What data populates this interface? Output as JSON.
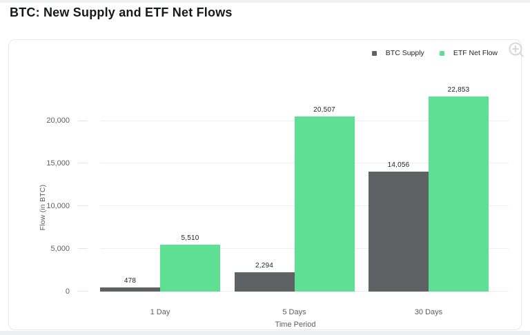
{
  "page": {
    "title": "BTC: New Supply and ETF Net Flows"
  },
  "legend": {
    "items": [
      {
        "label": "BTC Supply"
      },
      {
        "label": "ETF Net Flow"
      }
    ]
  },
  "icons": {
    "zoom_in": "magnifier-plus-icon"
  },
  "colors": {
    "btc_supply": "#5e6264",
    "etf_net_flow": "#5ee094",
    "gridline": "#eeeeee",
    "axis_text": "#5a5d5f",
    "title_text": "#17181a"
  },
  "chart_data": {
    "type": "bar",
    "title": "BTC: New Supply and ETF Net Flows",
    "categories": [
      "1 Day",
      "5 Days",
      "30 Days"
    ],
    "series": [
      {
        "name": "BTC Supply",
        "color": "#5e6264",
        "values": [
          478,
          2294,
          14056
        ],
        "labels": [
          "478",
          "2,294",
          "14,056"
        ]
      },
      {
        "name": "ETF Net Flow",
        "color": "#5ee094",
        "values": [
          5510,
          20507,
          22853
        ],
        "labels": [
          "5,510",
          "20,507",
          "22,853"
        ]
      }
    ],
    "xlabel": "Time Period",
    "ylabel": "Flow (in BTC)",
    "ylim": [
      0,
      24000
    ],
    "yticks": [
      {
        "value": 0,
        "label": "0"
      },
      {
        "value": 5000,
        "label": "5,000"
      },
      {
        "value": 10000,
        "label": "10,000"
      },
      {
        "value": 15000,
        "label": "15,000"
      },
      {
        "value": 20000,
        "label": "20,000"
      }
    ],
    "grid": true,
    "legend_position": "top-right"
  }
}
